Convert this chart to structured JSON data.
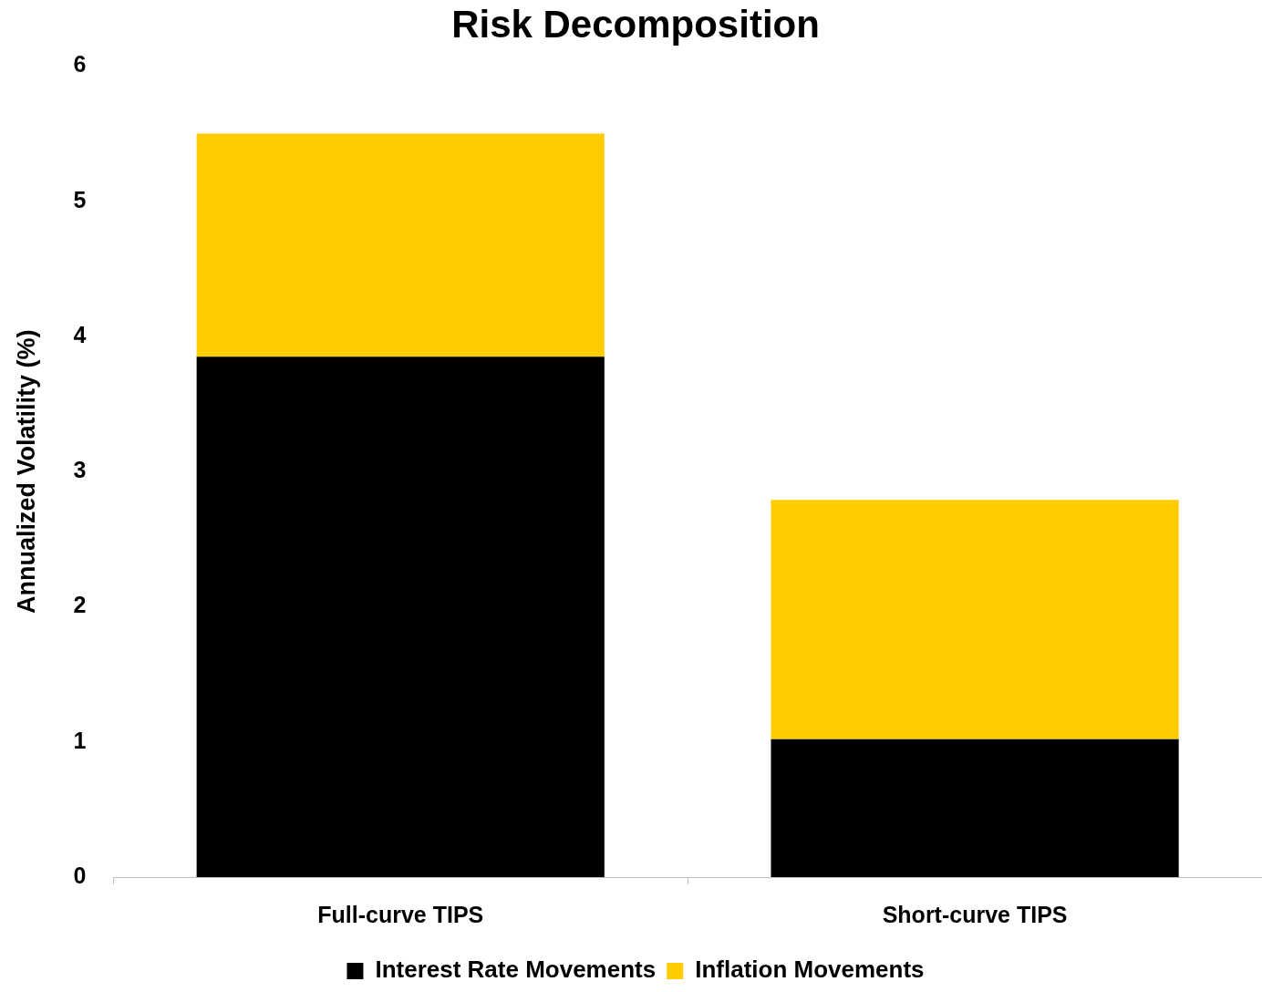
{
  "chart_data": {
    "type": "bar",
    "title": "Risk Decomposition",
    "ylabel": "Annualized Volatility (%)",
    "categories": [
      "Full-curve TIPS",
      "Short-curve TIPS"
    ],
    "series": [
      {
        "name": "Interest Rate Movements",
        "color": "#000000",
        "values": [
          3.85,
          1.02
        ]
      },
      {
        "name": "Inflation Movements",
        "color": "#ffcc00",
        "values": [
          1.65,
          1.77
        ]
      }
    ],
    "stacked": true,
    "ylim": [
      0,
      6
    ],
    "yticks": [
      0,
      1,
      2,
      3,
      4,
      5,
      6
    ],
    "legend": "bottom"
  }
}
